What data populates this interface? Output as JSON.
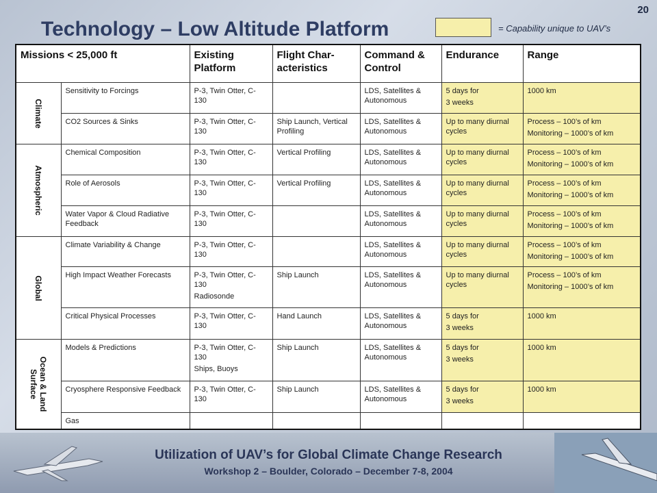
{
  "slide": {
    "page_number": "20",
    "title": "Technology – Low Altitude Platform",
    "legend": {
      "color": "#f6efab",
      "text": "= Capability unique to UAV’s"
    }
  },
  "table": {
    "headers": {
      "mission": "Missions < 25,000 ft",
      "platform": "Existing Platform",
      "flight": "Flight Char-acteristics",
      "command": "Command & Control",
      "endurance": "Endurance",
      "range": "Range"
    },
    "categories": {
      "climate": "Climate",
      "atmospheric": "Atmospheric",
      "global": "Global",
      "ocean": "Ocean & Land\nSurface"
    },
    "rows": [
      {
        "mission": "Sensitivity to Forcings",
        "platform": "P-3, Twin Otter, C-130",
        "platform2": "",
        "flight": "",
        "command": "LDS, Satellites & Autonomous",
        "endurance": "5 days for",
        "endurance2": "3 weeks",
        "range": "1000 km",
        "range2": ""
      },
      {
        "mission": "CO2 Sources & Sinks",
        "platform": "P-3, Twin Otter, C-130",
        "platform2": "",
        "flight": "Ship Launch, Vertical Profiling",
        "command": "LDS, Satellites & Autonomous",
        "endurance": "Up to many diurnal cycles",
        "endurance2": "",
        "range": "Process – 100’s of km",
        "range2": "Monitoring – 1000’s of km"
      },
      {
        "mission": "Chemical Composition",
        "platform": "P-3, Twin Otter, C-130",
        "platform2": "",
        "flight": "Vertical Profiling",
        "command": "LDS, Satellites & Autonomous",
        "endurance": "Up to many diurnal cycles",
        "endurance2": "",
        "range": "Process – 100’s of km",
        "range2": "Monitoring – 1000’s of km"
      },
      {
        "mission": "Role of Aerosols",
        "platform": "P-3, Twin Otter, C-130",
        "platform2": "",
        "flight": "Vertical Profiling",
        "command": "LDS, Satellites & Autonomous",
        "endurance": "Up to many diurnal cycles",
        "endurance2": "",
        "range": "Process – 100’s of km",
        "range2": "Monitoring – 1000’s of km"
      },
      {
        "mission": "Water Vapor & Cloud Radiative Feedback",
        "platform": "P-3, Twin Otter, C-130",
        "platform2": "",
        "flight": "",
        "command": "LDS, Satellites & Autonomous",
        "endurance": "Up to many diurnal cycles",
        "endurance2": "",
        "range": "Process – 100’s of km",
        "range2": "Monitoring – 1000’s of km"
      },
      {
        "mission": "Climate Variability & Change",
        "platform": "P-3, Twin Otter, C-130",
        "platform2": "",
        "flight": "",
        "command": "LDS, Satellites & Autonomous",
        "endurance": "Up to many diurnal cycles",
        "endurance2": "",
        "range": "Process – 100’s of km",
        "range2": "Monitoring – 1000’s of km"
      },
      {
        "mission": "High Impact Weather Forecasts",
        "platform": "P-3, Twin Otter, C-130",
        "platform2": "Radiosonde",
        "flight": "Ship Launch",
        "command": "LDS, Satellites & Autonomous",
        "endurance": "Up to many diurnal cycles",
        "endurance2": "",
        "range": "Process – 100’s of km",
        "range2": "Monitoring – 1000’s of km"
      },
      {
        "mission": "Critical Physical Processes",
        "platform": "P-3, Twin Otter, C-130",
        "platform2": "",
        "flight": "Hand Launch",
        "command": "LDS, Satellites & Autonomous",
        "endurance": "5 days for",
        "endurance2": "3 weeks",
        "range": "1000 km",
        "range2": ""
      },
      {
        "mission": "Models & Predictions",
        "platform": "P-3, Twin Otter, C-130",
        "platform2": "Ships, Buoys",
        "flight": "Ship Launch",
        "command": "LDS, Satellites & Autonomous",
        "endurance": "5 days for",
        "endurance2": "3 weeks",
        "range": "1000 km",
        "range2": ""
      },
      {
        "mission": "Cryosphere Responsive Feedback",
        "platform": "P-3, Twin Otter, C-130",
        "platform2": "",
        "flight": "Ship Launch",
        "command": "LDS, Satellites & Autonomous",
        "endurance": "5 days for",
        "endurance2": "3 weeks",
        "range": "1000 km",
        "range2": ""
      },
      {
        "mission": "Gas",
        "platform": "",
        "platform2": "",
        "flight": "",
        "command": "",
        "endurance": "",
        "endurance2": "",
        "range": "",
        "range2": ""
      }
    ]
  },
  "footer": {
    "title": "Utilization of UAV’s for Global Climate Change Research",
    "subtitle": "Workshop 2 – Boulder, Colorado – December 7-8, 2004"
  }
}
